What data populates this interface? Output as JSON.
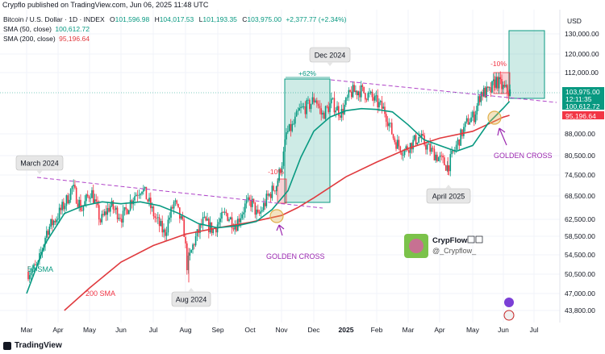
{
  "header": {
    "published": "Crypflo published on TradingView.com, Jun 06, 2025 11:48 UTC"
  },
  "legend": {
    "symbol": "Bitcoin / U.S. Dollar · 1D · INDEX",
    "o_label": "O",
    "o": "101,596.98",
    "h_label": "H",
    "h": "104,017.53",
    "l_label": "L",
    "l": "101,193.35",
    "c_label": "C",
    "c": "103,975.00",
    "change": "+2,377.77 (+2.34%)",
    "sma50_label": "SMA (50, close)",
    "sma50_value": "100,612.72",
    "sma200_label": "SMA (200, close)",
    "sma200_value": "95,196.64"
  },
  "colors": {
    "up": "#089981",
    "down": "#f23645",
    "sma50": "#089981",
    "sma200": "#e03a3e",
    "trend": "#b043c8",
    "circle": "#e0b04b",
    "golden_text": "#9c27b0"
  },
  "y_axis": {
    "currency": "USD",
    "ticks": [
      130000,
      120000,
      112000,
      95196.64,
      88000,
      80500,
      74500,
      68500,
      62500,
      58500,
      54500,
      50500,
      47000,
      43800
    ],
    "tick_labels": [
      "130,000.00",
      "120,000.00",
      "112,000.00",
      "95,196.64",
      "88,000.00",
      "80,500.00",
      "74,500.00",
      "68,500.00",
      "62,500.00",
      "58,500.00",
      "54,500.00",
      "50,500.00",
      "47,000.00",
      "43,800.00"
    ],
    "last_price_label": "103,975.00",
    "countdown": "12:11:35",
    "sma50_label": "100,612.72",
    "sma200_label": "95,196.64"
  },
  "x_axis": {
    "labels": [
      "Mar",
      "Apr",
      "May",
      "Jun",
      "Jul",
      "Aug",
      "Sep",
      "Oct",
      "Nov",
      "Dec",
      "2025",
      "Feb",
      "Mar",
      "Apr",
      "May",
      "Jun",
      "Jul"
    ]
  },
  "annotations": {
    "march_2024": "March 2024",
    "aug_2024": "Aug 2024",
    "dec_2024": "Dec 2024",
    "april_2025": "April 2025",
    "pct_62": "+62%",
    "pct_neg10_a": "-10%",
    "pct_neg10_b": "-10%",
    "golden_cross_1": "GOLDEN CROSS",
    "golden_cross_2": "GOLDEN CROSS",
    "sma50_tag": "50 SMA",
    "sma200_tag": "200 SMA"
  },
  "watermark": {
    "name": "CrypFlow",
    "handle": "@_Crypflow_"
  },
  "footer": {
    "brand": "TradingView"
  },
  "chart_data": {
    "type": "line",
    "title": "Bitcoin / U.S. Dollar · 1D · INDEX",
    "x_labels": [
      "Mar",
      "Apr",
      "May",
      "Jun",
      "Jul",
      "Aug",
      "Sep",
      "Oct",
      "Nov",
      "Dec",
      "2025",
      "Feb",
      "Mar",
      "Apr",
      "May",
      "Jun",
      "Jul"
    ],
    "ylim": [
      42000,
      135000
    ],
    "series": [
      {
        "name": "BTC close",
        "x": [
          0,
          0.3,
          0.6,
          0.9,
          1.2,
          1.4,
          1.7,
          2.0,
          2.3,
          2.6,
          3.0,
          3.3,
          3.6,
          4.0,
          4.3,
          4.6,
          4.9,
          5.0,
          5.2,
          5.5,
          5.8,
          6.2,
          6.5,
          6.8,
          7.0,
          7.2,
          7.5,
          7.8,
          8.0,
          8.1,
          8.3,
          8.5,
          8.8,
          9.0,
          9.2,
          9.5,
          9.8,
          10.1,
          10.4,
          10.8,
          11.2,
          11.5,
          11.8,
          12.0,
          12.3,
          12.6,
          12.9,
          13.2,
          13.5,
          13.8,
          14.0,
          14.2,
          14.5,
          14.7,
          15.0,
          15.2
        ],
        "values": [
          51000,
          52000,
          60000,
          63000,
          67000,
          71000,
          65000,
          70000,
          62000,
          66000,
          63000,
          68000,
          71000,
          63000,
          59000,
          67000,
          60000,
          52000,
          57000,
          62000,
          60000,
          64000,
          61000,
          66000,
          67000,
          63000,
          68000,
          72000,
          80000,
          88000,
          91000,
          97000,
          99000,
          102000,
          95000,
          100000,
          96000,
          104000,
          105000,
          102000,
          97000,
          86000,
          82000,
          84000,
          87000,
          83000,
          80000,
          77000,
          85000,
          93000,
          95000,
          104000,
          104000,
          109000,
          105000,
          103975
        ]
      },
      {
        "name": "SMA (50, close)",
        "x": [
          0,
          0.6,
          1.2,
          1.8,
          2.4,
          3.0,
          3.6,
          4.2,
          4.8,
          5.4,
          6.0,
          6.6,
          7.2,
          7.7,
          8.2,
          8.6,
          9.0,
          9.5,
          10.0,
          10.5,
          11.0,
          11.5,
          12.0,
          12.5,
          13.0,
          13.5,
          14.0,
          14.5,
          15.0,
          15.2
        ],
        "values": [
          47000,
          57000,
          64000,
          66000,
          67000,
          66500,
          67000,
          66000,
          64000,
          61500,
          60500,
          61000,
          62000,
          65000,
          70000,
          80000,
          89000,
          94500,
          97000,
          97800,
          97500,
          96500,
          91500,
          86000,
          84000,
          82000,
          84000,
          92000,
          98000,
          100612.72
        ]
      },
      {
        "name": "SMA (200, close)",
        "x": [
          1.2,
          2.0,
          3.0,
          4.0,
          5.0,
          6.0,
          7.0,
          8.0,
          8.5,
          9.0,
          10.0,
          11.0,
          12.0,
          13.0,
          14.0,
          15.0,
          15.2
        ],
        "values": [
          43800,
          48000,
          53000,
          56500,
          59000,
          60500,
          61800,
          63500,
          65500,
          68000,
          74000,
          78500,
          83000,
          86500,
          89000,
          94500,
          95196.64
        ]
      }
    ]
  }
}
